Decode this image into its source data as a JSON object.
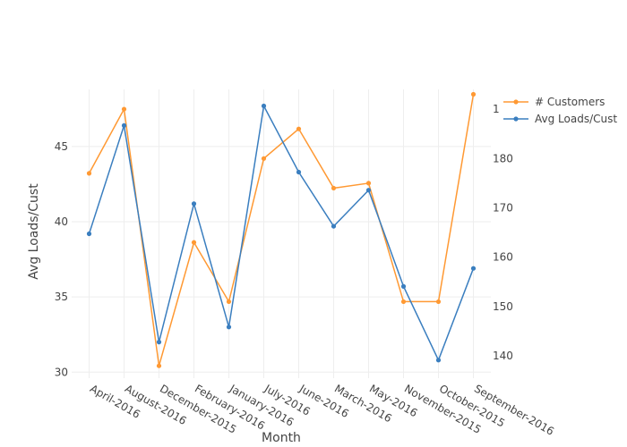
{
  "chart_data": {
    "type": "line",
    "xlabel": "Month",
    "ylabel": "Avg Loads/Cust",
    "categories": [
      "April-2016",
      "August-2016",
      "December-2015",
      "February-2016",
      "January-2016",
      "July-2016",
      "June-2016",
      "March-2016",
      "May-2016",
      "November-2015",
      "October-2015",
      "September-2016"
    ],
    "y_left": {
      "range": [
        29.6,
        48.8
      ],
      "ticks": [
        30,
        35,
        40,
        45
      ]
    },
    "y_right": {
      "range": [
        135.5,
        194
      ],
      "ticks": [
        140,
        150,
        160,
        170,
        180
      ],
      "top_tick_label": "1"
    },
    "grid": true,
    "legend_position": "top-right",
    "series": [
      {
        "name": "# Customers",
        "axis": "right",
        "color": "#ff9933",
        "values": [
          177,
          190,
          138,
          163,
          151,
          180,
          186,
          174,
          175,
          151,
          151,
          193
        ]
      },
      {
        "name": "Avg Loads/Cust",
        "axis": "left",
        "color": "#3a7ebf",
        "values": [
          39.2,
          46.4,
          32.0,
          41.2,
          33.0,
          47.7,
          43.3,
          39.7,
          42.1,
          35.7,
          30.8,
          36.9
        ]
      }
    ]
  }
}
